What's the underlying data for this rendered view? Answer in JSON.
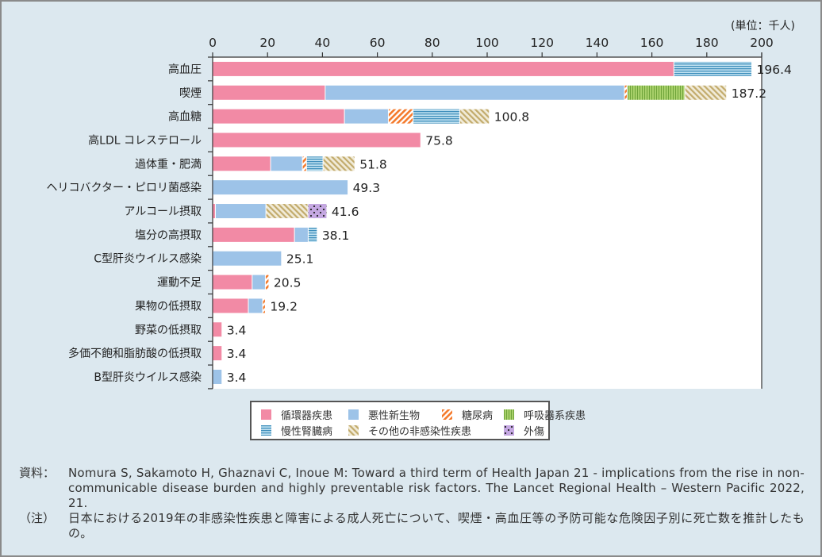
{
  "chart_data": {
    "type": "bar",
    "orientation": "horizontal",
    "stacked": true,
    "unit_label": "(単位：千人)",
    "xlim": [
      0,
      200
    ],
    "xticks": [
      0,
      20,
      40,
      60,
      80,
      100,
      120,
      140,
      160,
      180,
      200
    ],
    "categories": [
      "高血圧",
      "喫煙",
      "高血糖",
      "高LDL コレステロール",
      "過体重・肥満",
      "ヘリコバクター・ピロリ菌感染",
      "アルコール摂取",
      "塩分の高摂取",
      "C型肝炎ウイルス感染",
      "運動不足",
      "果物の低摂取",
      "野菜の低摂取",
      "多価不飽和脂肪酸の低摂取",
      "B型肝炎ウイルス感染"
    ],
    "totals": [
      "196.4",
      "187.2",
      "100.8",
      "75.8",
      "51.8",
      "49.3",
      "41.6",
      "38.1",
      "25.1",
      "20.5",
      "19.2",
      "3.4",
      "3.4",
      "3.4"
    ],
    "series": [
      {
        "name": "循環器疾患",
        "color": "#f28aa5",
        "pattern": "solid",
        "values": [
          168.0,
          41.0,
          48.0,
          75.8,
          21.1,
          0,
          1.0,
          29.8,
          0,
          14.4,
          13.0,
          3.4,
          3.4,
          0
        ]
      },
      {
        "name": "悪性新生物",
        "color": "#9dc3e8",
        "pattern": "solid",
        "values": [
          0,
          109.0,
          16.0,
          0,
          11.6,
          49.3,
          18.4,
          5.0,
          25.1,
          4.8,
          5.2,
          0,
          0,
          3.4
        ]
      },
      {
        "name": "糖尿病",
        "color": "#f47a2c",
        "pattern": "diagonal",
        "values": [
          0,
          1.0,
          9.0,
          0,
          1.5,
          0,
          0,
          0,
          0,
          1.3,
          1.0,
          0,
          0,
          0
        ]
      },
      {
        "name": "呼吸器系疾患",
        "color": "#8cc04f",
        "pattern": "vertical",
        "values": [
          0,
          21.0,
          0,
          0,
          0,
          0,
          0,
          0,
          0,
          0,
          0,
          0,
          0,
          0
        ]
      },
      {
        "name": "慢性腎臓病",
        "color": "#4a9ec9",
        "pattern": "horizontal",
        "values": [
          28.4,
          0,
          17.0,
          0,
          6.0,
          0,
          0,
          3.3,
          0,
          0,
          0,
          0,
          0,
          0
        ]
      },
      {
        "name": "その他の非感染性疾患",
        "color": "#c9b47a",
        "pattern": "diagonal-back",
        "values": [
          0,
          15.2,
          10.8,
          0,
          11.6,
          0,
          15.3,
          0,
          0,
          0,
          0,
          0,
          0,
          0
        ]
      },
      {
        "name": "外傷",
        "color": "#b89ad8",
        "pattern": "dots",
        "values": [
          0,
          0,
          0,
          0,
          0,
          0,
          6.9,
          0,
          0,
          0,
          0,
          0,
          0,
          0
        ]
      }
    ]
  },
  "notes": {
    "source_label": "資料：",
    "source_text": "Nomura S, Sakamoto H, Ghaznavi C, Inoue M: Toward a third term of Health Japan 21 - implications from the rise in non-communicable disease burden and highly preventable risk factors. The Lancet Regional Health – Western Pacific 2022, 21.",
    "note_label": "（注）",
    "note_text": "日本における2019年の非感染性疾患と障害による成人死亡について、喫煙・高血圧等の予防可能な危険因子別に死亡数を推計したもの。"
  }
}
